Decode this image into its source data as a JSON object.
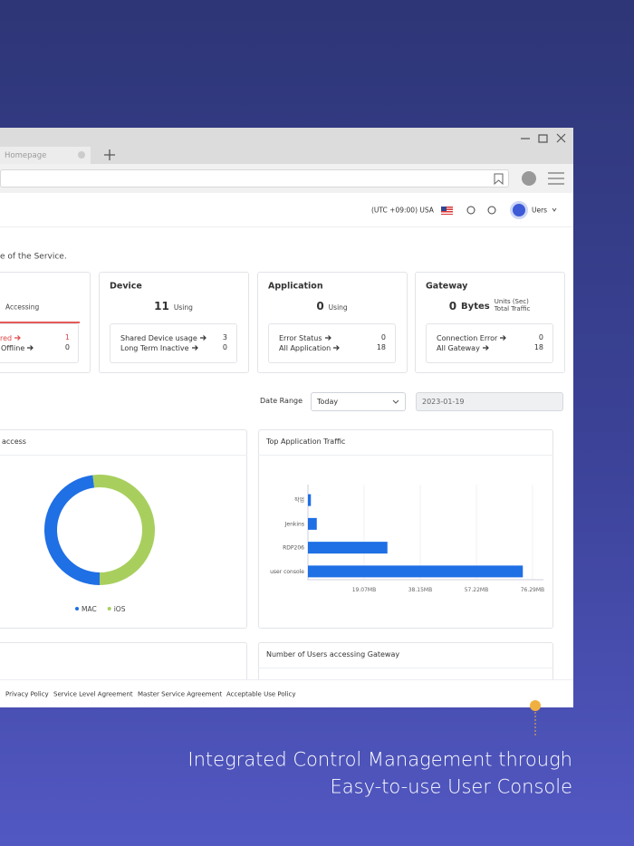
{
  "browser": {
    "tab": "Homepage"
  },
  "header": {
    "timezone": "(UTC +09:00) USA",
    "user": "Uers"
  },
  "intro": "e of the Service.",
  "cards": [
    {
      "count_label": "Accessing",
      "rows": [
        {
          "label": "red",
          "value": 1
        },
        {
          "label": "Offline",
          "value": 0
        }
      ]
    },
    {
      "title": "Device",
      "count": 11,
      "count_label": "Using",
      "rows": [
        {
          "label": "Shared Device usage",
          "value": 3
        },
        {
          "label": "Long Term Inactive",
          "value": 0
        }
      ]
    },
    {
      "title": "Application",
      "count": 0,
      "count_label": "Using",
      "rows": [
        {
          "label": "Error Status",
          "value": 0
        },
        {
          "label": "All Application",
          "value": 18
        }
      ]
    },
    {
      "title": "Gateway",
      "count": 0,
      "unit": "Bytes",
      "notes": [
        "Units (Sec)",
        "Total Traffic"
      ],
      "rows": [
        {
          "label": "Connection Error",
          "value": 0
        },
        {
          "label": "All Gateway",
          "value": 18
        }
      ]
    }
  ],
  "filters": {
    "label": "Date Range",
    "select": "Today",
    "date": "2023-01-19"
  },
  "chart_data": [
    {
      "type": "pie",
      "title": "access",
      "categories": [
        "MAC",
        "iOS"
      ],
      "values": [
        48,
        52
      ],
      "colors": [
        "#1f6fe5",
        "#a8cf5e"
      ]
    },
    {
      "type": "bar",
      "orientation": "horizontal",
      "title": "Top Application Traffic",
      "categories": [
        "작업",
        "Jenkins",
        "RDP206",
        "user console"
      ],
      "values": [
        1,
        3,
        27,
        73
      ],
      "color": "#1f6fe5",
      "xlim": [
        0,
        80
      ],
      "xticks": [
        {
          "value": 19.07,
          "label": "19.07MB"
        },
        {
          "value": 38.15,
          "label": "38.15MB"
        },
        {
          "value": 57.22,
          "label": "57.22MB"
        },
        {
          "value": 76.29,
          "label": "76.29MB"
        }
      ]
    }
  ],
  "panels": [
    "Number of Users accessing Gateway"
  ],
  "footer_links": [
    "Privacy Policy",
    "Service Level Agreement",
    "Master Service Agreement",
    "Acceptable Use Policy"
  ],
  "caption": [
    "Integrated Control Management through",
    "Easy-to-use User Console"
  ]
}
